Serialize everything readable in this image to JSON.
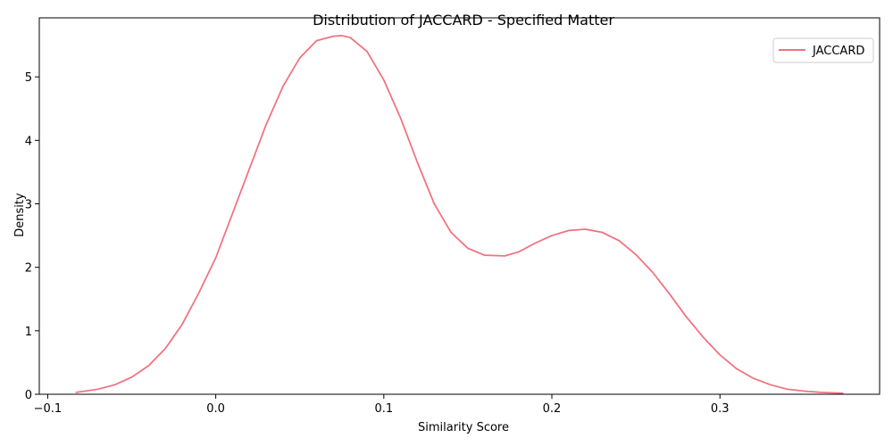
{
  "chart_data": {
    "type": "line",
    "title": "Distribution of JACCARD - Specified Matter",
    "xlabel": "Similarity Score",
    "ylabel": "Density",
    "xlim": [
      -0.105,
      0.395
    ],
    "ylim": [
      0,
      5.93
    ],
    "xticks": [
      -0.1,
      0.0,
      0.1,
      0.2,
      0.3
    ],
    "xtick_labels": [
      "−0.1",
      "0.0",
      "0.1",
      "0.2",
      "0.3"
    ],
    "yticks": [
      0,
      1,
      2,
      3,
      4,
      5
    ],
    "ytick_labels": [
      "0",
      "1",
      "2",
      "3",
      "4",
      "5"
    ],
    "grid": false,
    "legend_position": "top-right",
    "series": [
      {
        "name": "JACCARD",
        "color": "#f0717f",
        "x": [
          -0.083,
          -0.07,
          -0.06,
          -0.05,
          -0.04,
          -0.03,
          -0.02,
          -0.01,
          0.0,
          0.01,
          0.02,
          0.03,
          0.04,
          0.05,
          0.06,
          0.07,
          0.075,
          0.08,
          0.09,
          0.1,
          0.11,
          0.12,
          0.13,
          0.14,
          0.15,
          0.16,
          0.172,
          0.18,
          0.19,
          0.2,
          0.21,
          0.22,
          0.23,
          0.24,
          0.25,
          0.26,
          0.27,
          0.28,
          0.29,
          0.3,
          0.31,
          0.32,
          0.33,
          0.34,
          0.35,
          0.36,
          0.373
        ],
        "y": [
          0.03,
          0.08,
          0.15,
          0.27,
          0.45,
          0.72,
          1.1,
          1.6,
          2.15,
          2.85,
          3.55,
          4.25,
          4.85,
          5.3,
          5.57,
          5.64,
          5.65,
          5.62,
          5.4,
          4.95,
          4.35,
          3.65,
          3.0,
          2.55,
          2.3,
          2.19,
          2.18,
          2.24,
          2.38,
          2.5,
          2.58,
          2.6,
          2.55,
          2.42,
          2.2,
          1.92,
          1.58,
          1.22,
          0.9,
          0.62,
          0.4,
          0.25,
          0.15,
          0.08,
          0.05,
          0.03,
          0.015
        ]
      }
    ]
  }
}
